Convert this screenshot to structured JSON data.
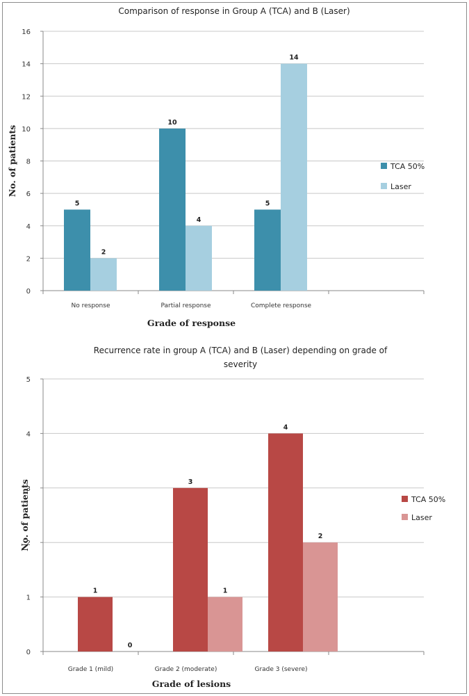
{
  "chart_data": [
    {
      "type": "bar",
      "title": "Comparison of response in Group A (TCA) and B (Laser)",
      "xlabel": "Grade of response",
      "ylabel": "No. of patients",
      "categories": [
        "No response",
        "Partial response",
        "Complete response"
      ],
      "series": [
        {
          "name": "TCA 50%",
          "values": [
            5,
            10,
            5
          ],
          "color": "#3d8fab"
        },
        {
          "name": "Laser",
          "values": [
            2,
            4,
            14
          ],
          "color": "#a6cfe0"
        }
      ],
      "ylim": [
        0,
        16
      ],
      "yticks": [
        0,
        2,
        4,
        6,
        8,
        10,
        12,
        14,
        16
      ],
      "grid": true,
      "legend": "right"
    },
    {
      "type": "bar",
      "title": "Recurrence rate in group A (TCA) and B (Laser) depending on grade of severity",
      "title_lines": [
        "Recurrence rate in group A (TCA) and B (Laser) depending  on grade of",
        "severity"
      ],
      "xlabel": "Grade of lesions",
      "ylabel": "No. of patients",
      "categories": [
        "Grade 1 (mild)",
        "Grade 2 (moderate)",
        "Grade 3 (severe)"
      ],
      "series": [
        {
          "name": "TCA 50%",
          "values": [
            1,
            3,
            4
          ],
          "color": "#b84845"
        },
        {
          "name": "Laser",
          "values": [
            0,
            1,
            2
          ],
          "color": "#d99594"
        }
      ],
      "ylim": [
        0,
        5
      ],
      "yticks": [
        0,
        1,
        2,
        3,
        4,
        5
      ],
      "grid": true,
      "legend": "right"
    }
  ]
}
